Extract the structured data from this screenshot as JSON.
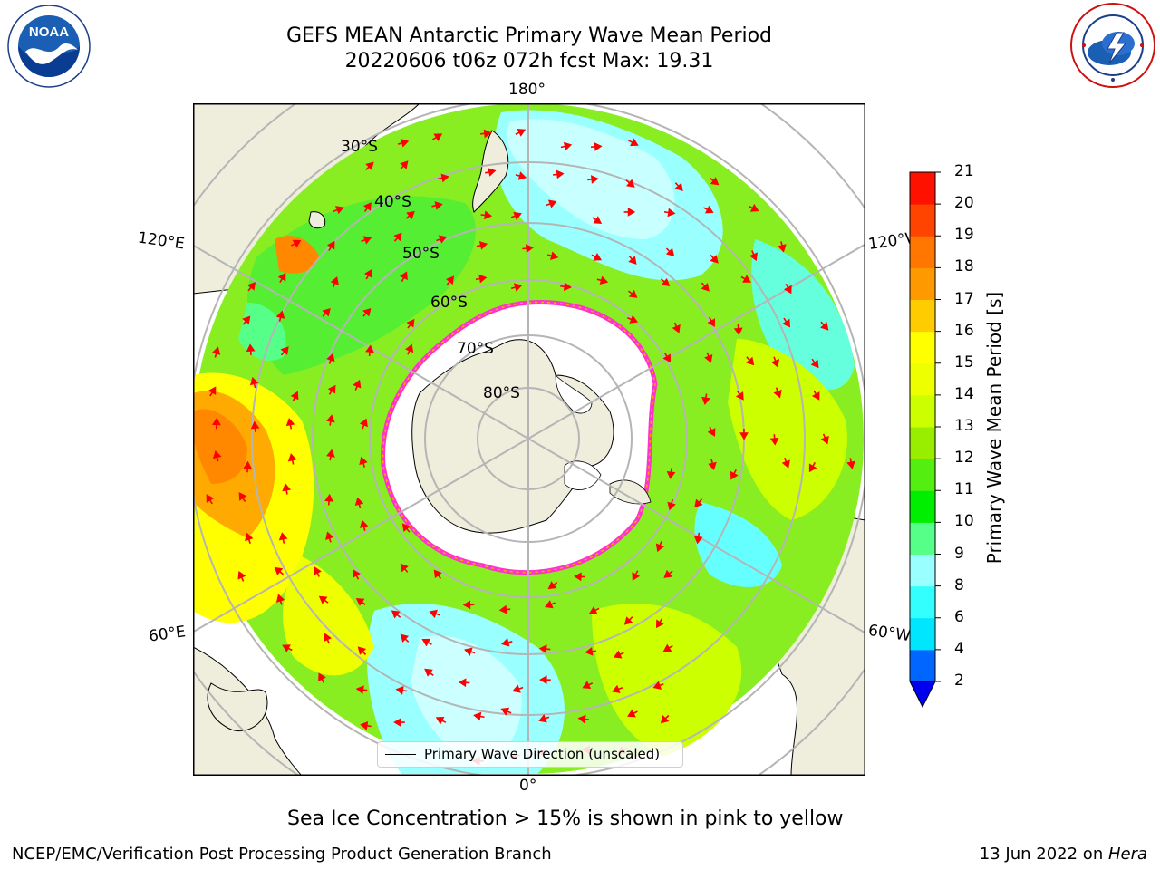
{
  "title_line1": "GEFS MEAN Antarctic Primary Wave Mean Period",
  "title_line2": "20220606 t06z 072h fcst   Max: 19.31",
  "logos": {
    "left": "noaa-logo",
    "right": "nws-logo"
  },
  "map": {
    "projection": "south-polar-stereographic",
    "longitude_labels": {
      "top": "180°",
      "left": "120°E",
      "right": "120°W",
      "bottom": "0°",
      "lower_left": "60°E",
      "lower_right": "60°W"
    },
    "latitude_labels": [
      "30°S",
      "40°S",
      "50°S",
      "60°S",
      "70°S",
      "80°S"
    ],
    "colors": {
      "land": "#efeddc",
      "sea_ice": "#ffffff",
      "ice_edge": "#ff33cc",
      "grid": "#b5b5b5",
      "arrow": "#ff0000"
    }
  },
  "legend": {
    "label": "Primary Wave Direction (unscaled)"
  },
  "colorbar": {
    "label": "Primary Wave Mean Period [s]",
    "ticks": [
      "2",
      "4",
      "6",
      "8",
      "9",
      "10",
      "11",
      "12",
      "13",
      "14",
      "15",
      "16",
      "17",
      "18",
      "19",
      "20",
      "21"
    ],
    "colors": [
      "#0066ff",
      "#00e6ff",
      "#33ffff",
      "#99ffff",
      "#55ff88",
      "#00ee00",
      "#55ee11",
      "#99ee00",
      "#ccff00",
      "#eeff00",
      "#ffff00",
      "#ffcc00",
      "#ff9900",
      "#ff7700",
      "#ff4400",
      "#ff1100"
    ],
    "under_color": "#0000ee"
  },
  "note": "Sea Ice Concentration > 15% is shown in pink to yellow",
  "footer_left": "NCEP/EMC/Verification Post Processing Product Generation Branch",
  "footer_date": "13 Jun 2022 on ",
  "footer_machine": "Hera"
}
